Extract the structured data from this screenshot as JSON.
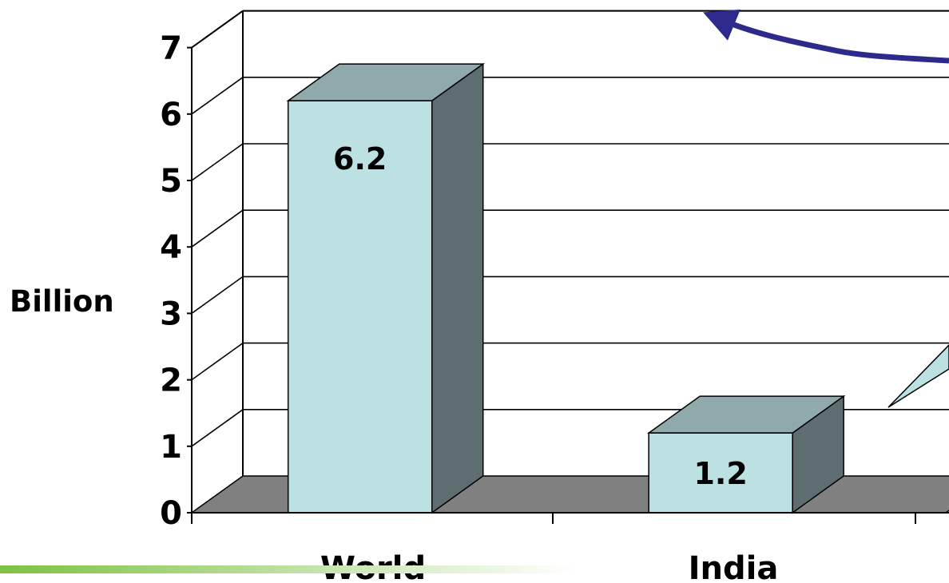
{
  "chart_data": {
    "type": "bar",
    "categories": [
      "World",
      "India"
    ],
    "values": [
      6.2,
      1.2
    ],
    "data_labels": [
      "6.2",
      "1.2"
    ],
    "title": "",
    "xlabel": "",
    "ylabel": "Billion",
    "ylim": [
      0,
      7
    ],
    "yticks": [
      "0",
      "1",
      "2",
      "3",
      "4",
      "5",
      "6",
      "7"
    ],
    "grid": true,
    "style": "3d-column"
  },
  "colors": {
    "bar_front": "#bde0e3",
    "bar_top": "#90a9ab",
    "bar_side": "#5e6e70",
    "floor": "#808080",
    "arrow": "#2e2a8c",
    "callout": "#bde0e3",
    "footer_gradient_start": "#7cc242",
    "footer_gradient_end": "#ffffff"
  }
}
